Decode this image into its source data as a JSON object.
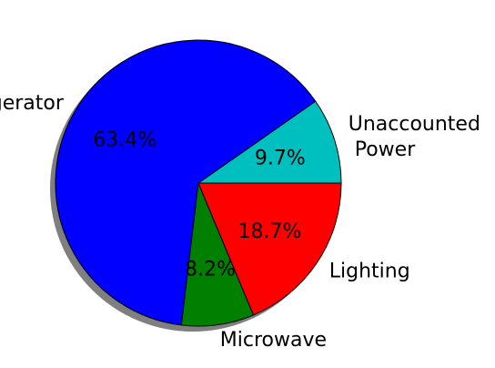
{
  "chart_data": {
    "type": "pie",
    "shadow": true,
    "slices": [
      {
        "label_lines": [
          "Unaccounted",
          " Power"
        ],
        "value": 9.7,
        "pct_text": "9.7%",
        "color": "#00bfbf"
      },
      {
        "label_lines": [
          "Refrigerator"
        ],
        "value": 63.4,
        "pct_text": "63.4%",
        "color": "#0000ff"
      },
      {
        "label_lines": [
          "Microwave"
        ],
        "value": 8.2,
        "pct_text": "8.2%",
        "color": "#007f00"
      },
      {
        "label_lines": [
          "Lighting"
        ],
        "value": 18.7,
        "pct_text": "18.7%",
        "color": "#ff0000"
      }
    ]
  }
}
